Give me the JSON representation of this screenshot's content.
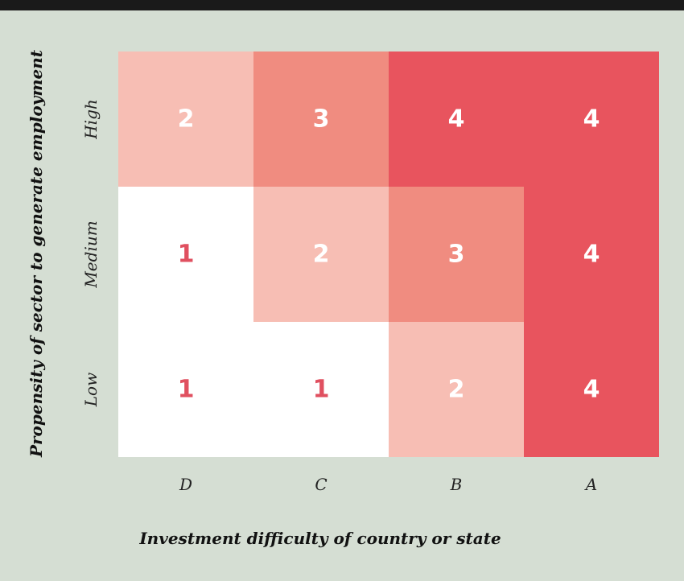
{
  "chart_data": {
    "type": "heatmap",
    "title": "",
    "xlabel": "Investment difficulty of country or state",
    "ylabel": "Propensity of sector to generate employment",
    "x_categories": [
      "D",
      "C",
      "B",
      "A"
    ],
    "y_categories": [
      "High",
      "Medium",
      "Low"
    ],
    "values": [
      [
        2,
        3,
        4,
        4
      ],
      [
        1,
        2,
        3,
        4
      ],
      [
        1,
        1,
        2,
        4
      ]
    ],
    "colors": {
      "1": "#ffffff",
      "2": "#f7beb4",
      "3": "#f08c80",
      "4": "#e8545e"
    },
    "text_colors": {
      "1": "#e05060",
      "2": "#ffffff",
      "3": "#ffffff",
      "4": "#ffffff"
    },
    "grid": false,
    "legend": "none"
  }
}
